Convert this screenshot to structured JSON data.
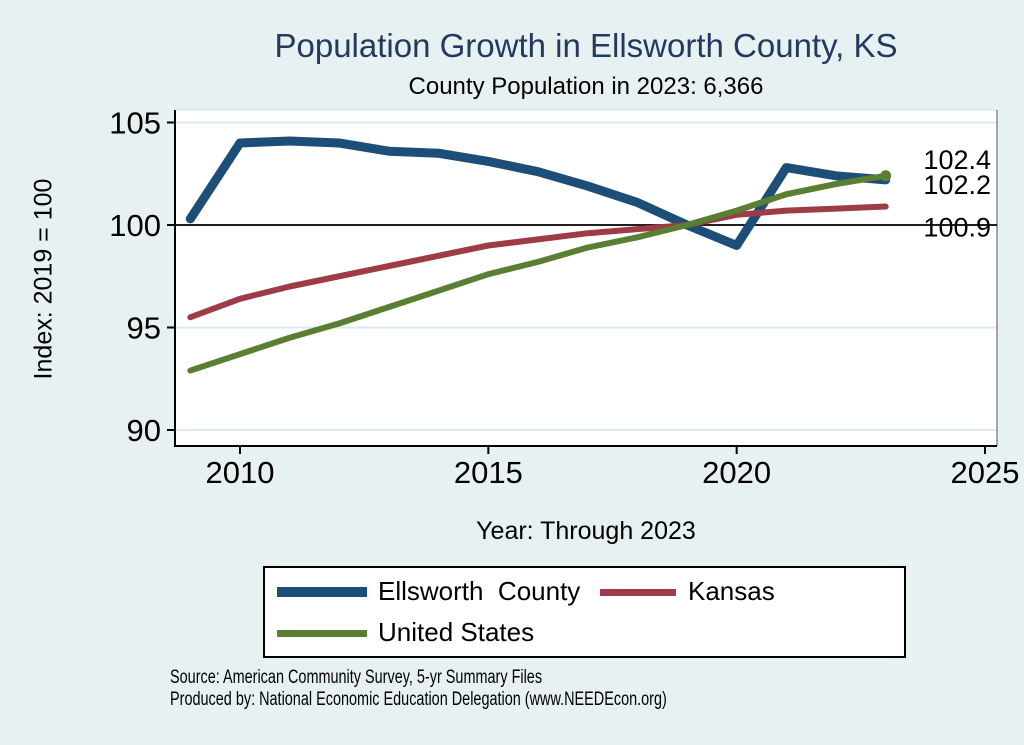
{
  "title": "Population Growth in Ellsworth County, KS",
  "subtitle": "County Population in 2023: 6,366",
  "footer": {
    "source": "Source: American Community Survey, 5-yr Summary Files",
    "produced_by": "Produced by: National Economic Education Delegation (www.NEEDEcon.org)"
  },
  "colors": {
    "background": "#e8f1f2",
    "plot_background": "#ffffff",
    "title_text": "#223a5e",
    "grid_line": "#dde9ee",
    "axis_line": "#000000",
    "reference_line": "#000000",
    "ellsworth_county": "#1d4e77",
    "kansas": "#9d3c46",
    "united_states": "#5a7e32"
  },
  "chart_data": {
    "type": "line",
    "title": "Population Growth in Ellsworth County, KS",
    "subtitle": "County Population in 2023: 6,366",
    "xlabel": "Year: Through 2023",
    "ylabel": "Index: 2019 = 100",
    "x": [
      2009,
      2010,
      2011,
      2012,
      2013,
      2014,
      2015,
      2016,
      2017,
      2018,
      2019,
      2020,
      2021,
      2022,
      2023
    ],
    "series": [
      {
        "id": "ellsworth-county",
        "name": "Ellsworth  County",
        "color": "#1d4e77",
        "stroke_width": 9,
        "values": [
          100.3,
          104.0,
          104.1,
          104.0,
          103.6,
          103.5,
          103.1,
          102.6,
          101.9,
          101.1,
          100.0,
          99.0,
          102.8,
          102.4,
          102.2
        ]
      },
      {
        "id": "kansas",
        "name": "Kansas",
        "color": "#9d3c46",
        "stroke_width": 6,
        "values": [
          95.5,
          96.4,
          97.0,
          97.5,
          98.0,
          98.5,
          99.0,
          99.3,
          99.6,
          99.8,
          100.0,
          100.5,
          100.7,
          100.8,
          100.9
        ]
      },
      {
        "id": "united-states",
        "name": "United States",
        "color": "#5a7e32",
        "stroke_width": 6,
        "end_dot": true,
        "values": [
          92.9,
          93.7,
          94.5,
          95.2,
          96.0,
          96.8,
          97.6,
          98.2,
          98.9,
          99.4,
          100.0,
          100.7,
          101.5,
          102.0,
          102.4
        ]
      }
    ],
    "end_labels": [
      {
        "text": "102.4",
        "value": 102.4,
        "dy": -7
      },
      {
        "text": "102.2",
        "value": 102.2,
        "dy": 14
      },
      {
        "text": "100.9",
        "value": 100.9,
        "dy": 30
      }
    ],
    "xticks": [
      2010,
      2015,
      2020,
      2025
    ],
    "yticks": [
      105,
      100,
      95,
      90
    ],
    "xlim": [
      2008.7,
      2025.2
    ],
    "ylim": [
      89.2,
      105.6
    ],
    "reference_line_y": 100,
    "grid": true,
    "legend_position": "bottom"
  }
}
